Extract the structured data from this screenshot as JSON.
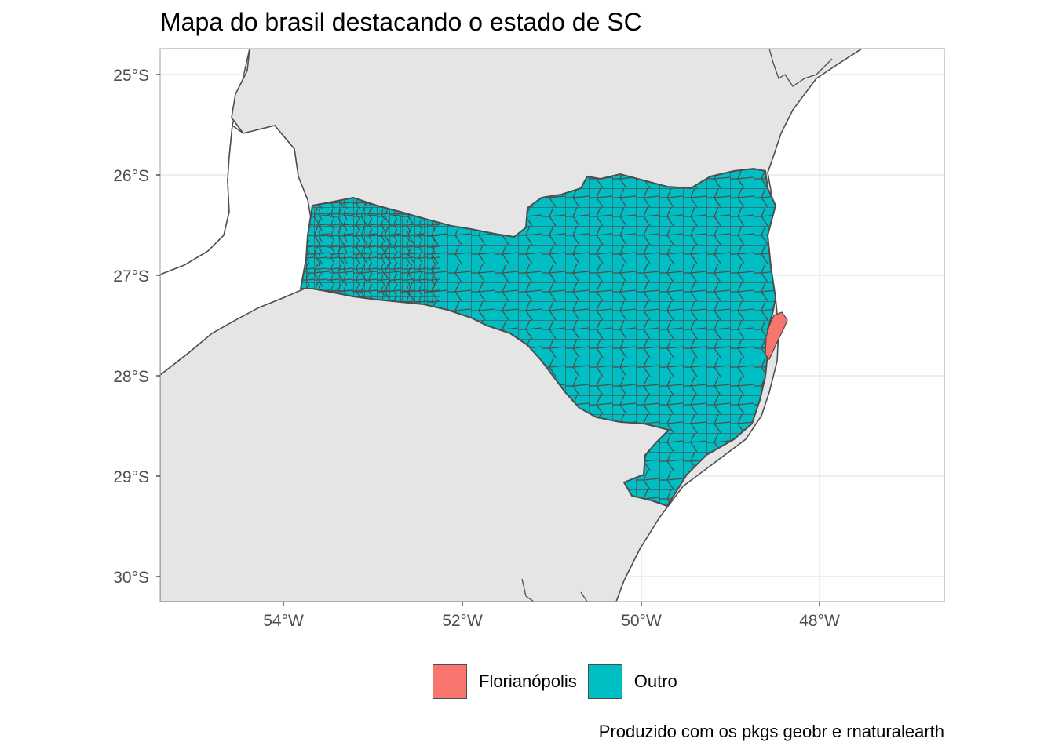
{
  "title": "Mapa do brasil destacando o estado de SC",
  "caption": "Produzido com os pkgs geobr e rnaturalearth",
  "axes": {
    "lat_ticks": [
      "25°S",
      "26°S",
      "27°S",
      "28°S",
      "29°S",
      "30°S"
    ],
    "lon_ticks": [
      "54°W",
      "52°W",
      "50°W",
      "48°W"
    ]
  },
  "legend": {
    "items": [
      {
        "label": "Florianópolis",
        "color": "#F8766D"
      },
      {
        "label": "Outro",
        "color": "#00BFC4"
      }
    ]
  },
  "colors": {
    "land": "#e5e5e5",
    "sea": "#ffffff",
    "border": "#4d4d4d",
    "grid": "#dedede",
    "panel_border": "#b3b3b3"
  }
}
